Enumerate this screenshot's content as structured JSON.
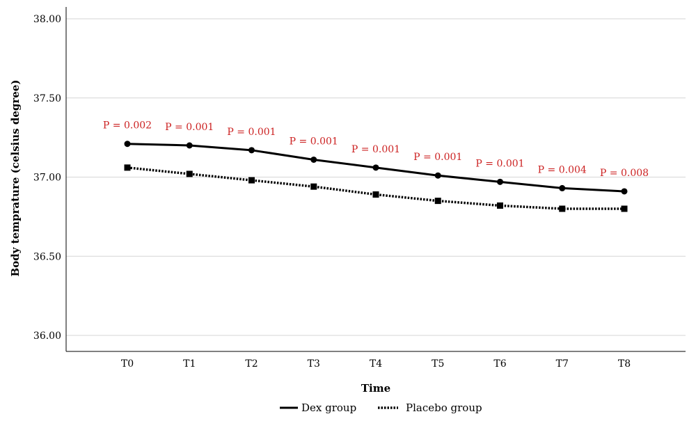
{
  "chart_data": {
    "type": "line",
    "title": "",
    "xlabel": "Time",
    "ylabel": "Body temprature (celsius degree)",
    "categories": [
      "T0",
      "T1",
      "T2",
      "T3",
      "T4",
      "T5",
      "T6",
      "T7",
      "T8"
    ],
    "ylim": [
      36.0,
      38.0
    ],
    "yticks": [
      "36.00",
      "36.50",
      "37.00",
      "37.50",
      "38.00"
    ],
    "grid": "horizontal",
    "legend_position": "bottom",
    "series": [
      {
        "name": "Dex group",
        "style": "solid",
        "marker": "circle",
        "values": [
          37.21,
          37.2,
          37.17,
          37.11,
          37.06,
          37.01,
          36.97,
          36.93,
          36.91
        ]
      },
      {
        "name": "Placebo group",
        "style": "dotted",
        "marker": "square",
        "values": [
          37.06,
          37.02,
          36.98,
          36.94,
          36.89,
          36.85,
          36.82,
          36.8,
          36.8
        ]
      }
    ],
    "annotations": [
      "P = 0.002",
      "P = 0.001",
      "P = 0.001",
      "P = 0.001",
      "P = 0.001",
      "P = 0.001",
      "P = 0.001",
      "P = 0.004",
      "P = 0.008"
    ],
    "annotation_color": "#cc2222"
  }
}
